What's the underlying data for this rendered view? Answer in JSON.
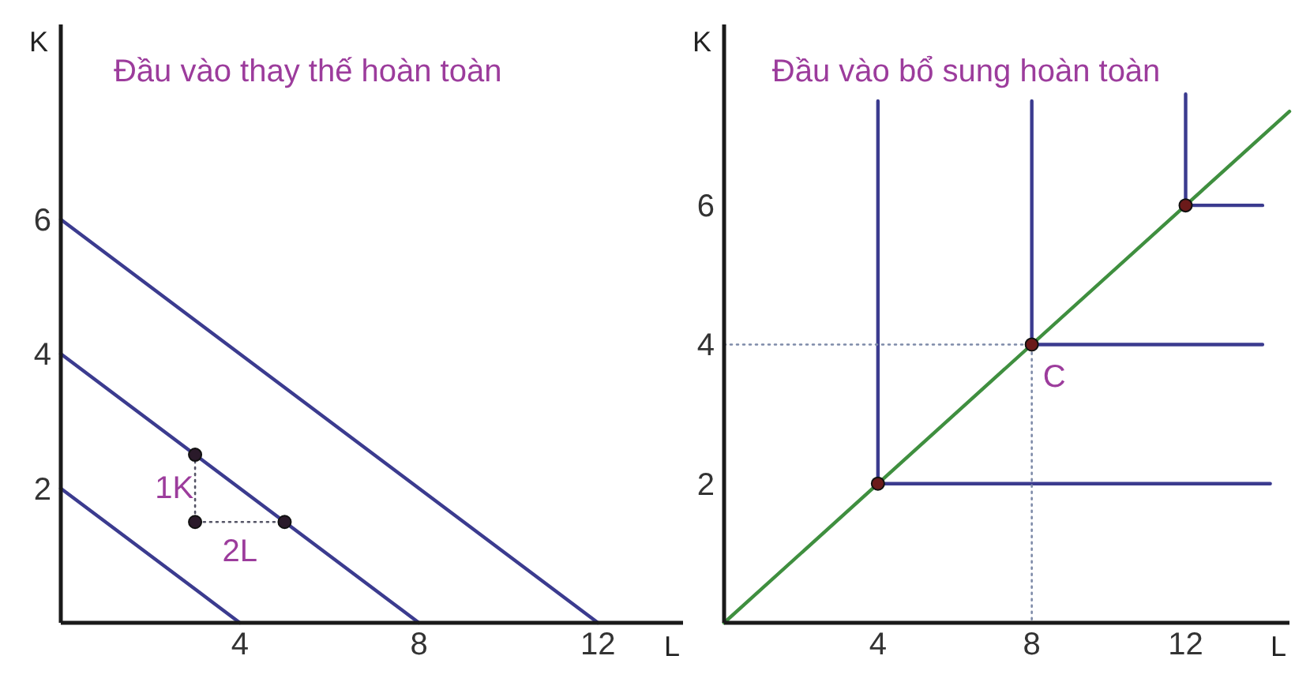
{
  "chart_data": [
    {
      "type": "line",
      "title": "Đầu vào thay thế hoàn toàn",
      "xlabel": "L",
      "ylabel": "K",
      "xlim": [
        0,
        13.9
      ],
      "ylim": [
        0,
        8.9
      ],
      "xticks": [
        4,
        8,
        12
      ],
      "yticks": [
        2,
        4,
        6
      ],
      "series": [
        {
          "type": "line",
          "color": "#3b3b8f",
          "x": [
            0,
            4
          ],
          "values": [
            2,
            0
          ]
        },
        {
          "type": "line",
          "color": "#3b3b8f",
          "x": [
            0,
            8
          ],
          "values": [
            4,
            0
          ]
        },
        {
          "type": "line",
          "color": "#3b3b8f",
          "x": [
            0,
            12
          ],
          "values": [
            6,
            0
          ]
        },
        {
          "type": "line",
          "line_style": "dotted",
          "color": "#555566",
          "x": [
            3,
            3,
            5
          ],
          "values": [
            2.5,
            1.5,
            1.5
          ]
        },
        {
          "type": "scatter",
          "marker": "circle",
          "color": "#2a1a2a",
          "x": [
            3,
            3,
            5
          ],
          "values": [
            2.5,
            1.5,
            1.5
          ]
        }
      ],
      "annotations": [
        {
          "text": "1K",
          "x": 3,
          "y": 2
        },
        {
          "text": "2L",
          "x": 4,
          "y": 1.5
        }
      ]
    },
    {
      "type": "line",
      "title": "Đầu vào bổ sung hoàn toàn",
      "xlabel": "L",
      "ylabel": "K",
      "xlim": [
        0,
        14.7
      ],
      "ylim": [
        0,
        8.6
      ],
      "xticks": [
        4,
        8,
        12
      ],
      "yticks": [
        2,
        4,
        6
      ],
      "series": [
        {
          "type": "line",
          "color": "#3f8f3f",
          "x": [
            0,
            14.7
          ],
          "values": [
            0,
            7.35
          ]
        },
        {
          "type": "line",
          "color": "#3b3b8f",
          "x": [
            4,
            4,
            14.2
          ],
          "values": [
            7.5,
            2,
            2
          ]
        },
        {
          "type": "line",
          "color": "#3b3b8f",
          "x": [
            8,
            8,
            14
          ],
          "values": [
            7.5,
            4,
            4
          ]
        },
        {
          "type": "line",
          "color": "#3b3b8f",
          "x": [
            12,
            12,
            14
          ],
          "values": [
            7.6,
            6,
            6
          ]
        },
        {
          "type": "line",
          "line_style": "dotted",
          "color": "#7d8aa8",
          "x": [
            0,
            8,
            8
          ],
          "values": [
            4,
            4,
            0
          ]
        },
        {
          "type": "scatter",
          "marker": "circle",
          "color": "#6b1a1a",
          "x": [
            4,
            8,
            12
          ],
          "values": [
            2,
            4,
            6
          ]
        }
      ],
      "annotations": [
        {
          "text": "C",
          "x": 8,
          "y": 4
        }
      ]
    }
  ]
}
